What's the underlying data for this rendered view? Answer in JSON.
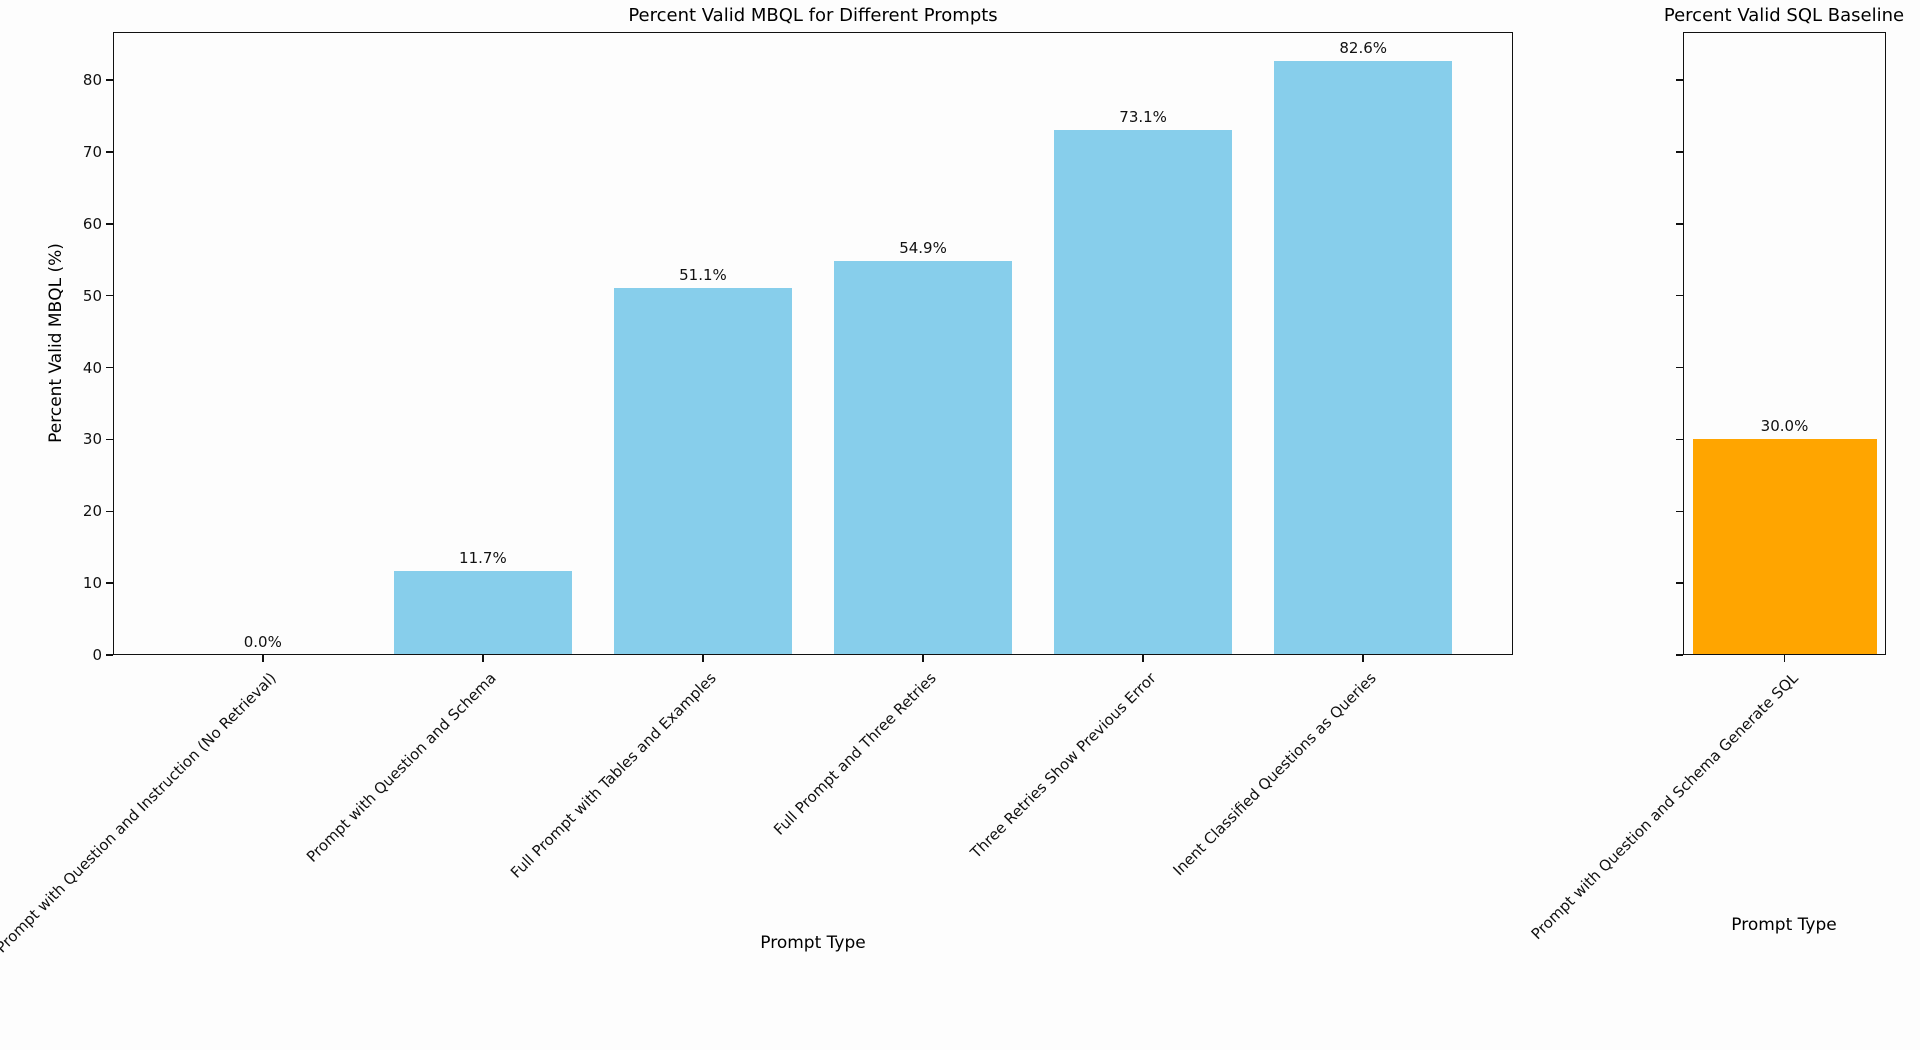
{
  "figure": {
    "background": "#fdfdfd",
    "text_color": "#111111"
  },
  "chart_data": [
    {
      "type": "bar",
      "title": "Percent Valid MBQL for Different Prompts",
      "xlabel": "Prompt Type",
      "ylabel": "Percent Valid MBQL (%)",
      "categories": [
        "Prompt with Question and Instruction (No Retrieval)",
        "Prompt with Question and Schema",
        "Full Prompt with Tables and Examples",
        "Full Prompt and Three Retries",
        "Three Retries Show Previous Error",
        "Inent Classified Questions as Queries"
      ],
      "values": [
        0.0,
        11.7,
        51.1,
        54.9,
        73.1,
        82.6
      ],
      "value_labels": [
        "0.0%",
        "11.7%",
        "51.1%",
        "54.9%",
        "73.1%",
        "82.6%"
      ],
      "bar_color": "#87CEEB",
      "ylim": [
        0,
        86.7
      ],
      "yticks": [
        0,
        10,
        20,
        30,
        40,
        50,
        60,
        70,
        80
      ],
      "show_ytick_labels": true,
      "grid": false,
      "legend": null,
      "xtick_rotation_deg": 45
    },
    {
      "type": "bar",
      "title": "Percent Valid SQL Baseline",
      "xlabel": "Prompt Type",
      "ylabel": "",
      "categories": [
        "Prompt with Question and Schema Generate SQL"
      ],
      "values": [
        30.0
      ],
      "value_labels": [
        "30.0%"
      ],
      "bar_color": "#FFA500",
      "ylim": [
        0,
        86.7
      ],
      "yticks": [
        0,
        10,
        20,
        30,
        40,
        50,
        60,
        70,
        80
      ],
      "show_ytick_labels": false,
      "grid": false,
      "legend": null,
      "xtick_rotation_deg": 45
    }
  ]
}
